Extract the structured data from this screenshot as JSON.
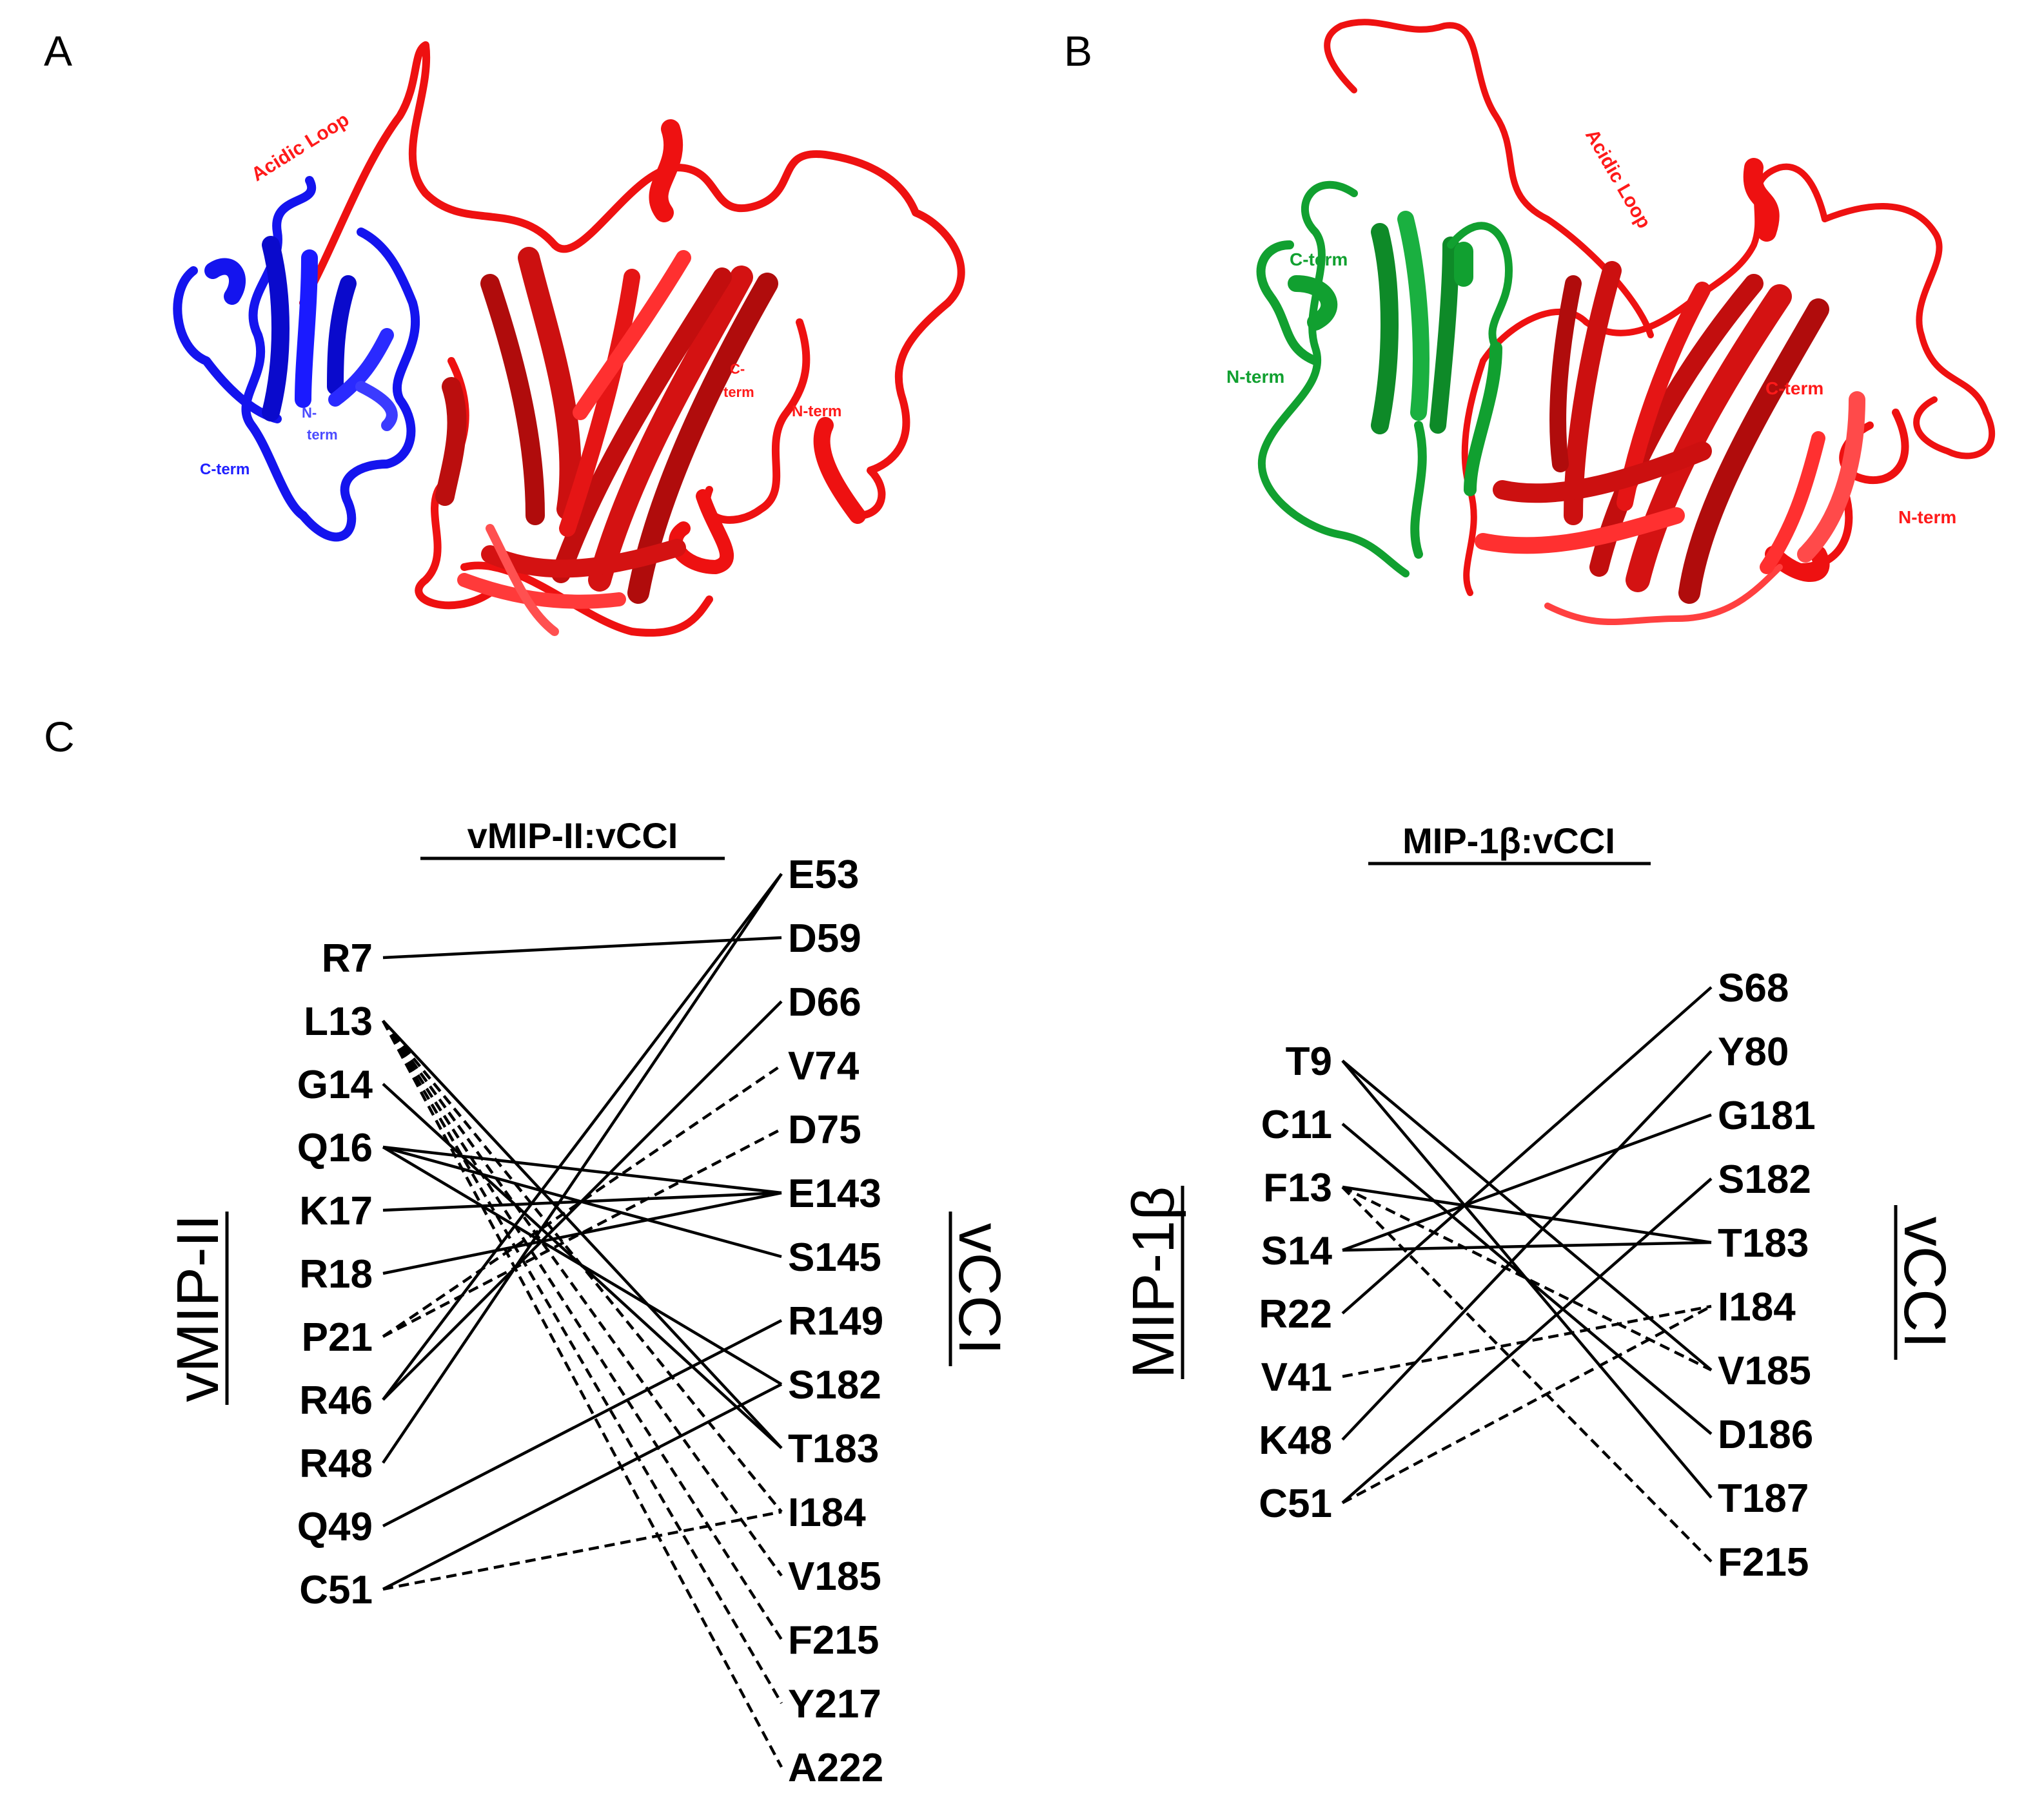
{
  "panels": {
    "a": {
      "letter": "A",
      "labels": {
        "acidic_loop": "Acidic Loop",
        "chemokine_c_term": "C-term",
        "chemokine_n_term_1": "N-",
        "chemokine_n_term_2": "term",
        "vcci_c_term_1": "C-",
        "vcci_c_term_2": "term",
        "vcci_n_term": "N-term"
      },
      "colors": {
        "chemokine": "#1a1aff",
        "vcci": "#ff1a1a"
      }
    },
    "b": {
      "letter": "B",
      "labels": {
        "acidic_loop": "Acidic Loop",
        "chemokine_c_term": "C-term",
        "chemokine_n_term": "N-term",
        "vcci_c_term": "C-term",
        "vcci_n_term": "N-term"
      },
      "colors": {
        "chemokine": "#1aa83a",
        "vcci": "#ff1a1a"
      }
    },
    "c": {
      "letter": "C",
      "left": {
        "title": "vMIP-II:vCCI",
        "left_axis": "vMIP-II",
        "left_residues": [
          "R7",
          "L13",
          "G14",
          "Q16",
          "K17",
          "R18",
          "P21",
          "R46",
          "R48",
          "Q49",
          "C51"
        ],
        "right_residues": [
          "E53",
          "D59",
          "D66",
          "V74",
          "D75",
          "E143",
          "S145",
          "R149",
          "S182",
          "T183",
          "I184",
          "V185",
          "F215",
          "Y217",
          "A222"
        ],
        "contacts": [
          {
            "from": "R7",
            "to": "D59",
            "style": "solid"
          },
          {
            "from": "L13",
            "to": "T183",
            "style": "solid"
          },
          {
            "from": "L13",
            "to": "I184",
            "style": "dashed"
          },
          {
            "from": "L13",
            "to": "V185",
            "style": "dashed"
          },
          {
            "from": "L13",
            "to": "F215",
            "style": "dashed"
          },
          {
            "from": "L13",
            "to": "Y217",
            "style": "dashed"
          },
          {
            "from": "L13",
            "to": "A222",
            "style": "dashed"
          },
          {
            "from": "G14",
            "to": "T183",
            "style": "solid"
          },
          {
            "from": "Q16",
            "to": "E143",
            "style": "solid"
          },
          {
            "from": "Q16",
            "to": "S145",
            "style": "solid"
          },
          {
            "from": "Q16",
            "to": "S182",
            "style": "solid"
          },
          {
            "from": "K17",
            "to": "E143",
            "style": "solid"
          },
          {
            "from": "R18",
            "to": "E143",
            "style": "solid"
          },
          {
            "from": "P21",
            "to": "V74",
            "style": "dashed"
          },
          {
            "from": "P21",
            "to": "D75",
            "style": "dashed"
          },
          {
            "from": "R46",
            "to": "E53",
            "style": "solid"
          },
          {
            "from": "R46",
            "to": "D66",
            "style": "solid"
          },
          {
            "from": "R48",
            "to": "E53",
            "style": "solid"
          },
          {
            "from": "Q49",
            "to": "R149",
            "style": "solid"
          },
          {
            "from": "C51",
            "to": "S182",
            "style": "solid"
          },
          {
            "from": "C51",
            "to": "I184",
            "style": "dashed"
          }
        ],
        "right_axis": "vCCI"
      },
      "right": {
        "title": "MIP-1β:vCCI",
        "left_axis": "MIP-1β",
        "left_residues": [
          "T9",
          "C11",
          "F13",
          "S14",
          "R22",
          "V41",
          "K48",
          "C51"
        ],
        "right_residues": [
          "S68",
          "Y80",
          "G181",
          "S182",
          "T183",
          "I184",
          "V185",
          "D186",
          "T187",
          "F215"
        ],
        "contacts": [
          {
            "from": "T9",
            "to": "V185",
            "style": "solid"
          },
          {
            "from": "T9",
            "to": "T187",
            "style": "solid"
          },
          {
            "from": "C11",
            "to": "D186",
            "style": "solid"
          },
          {
            "from": "F13",
            "to": "T183",
            "style": "solid"
          },
          {
            "from": "F13",
            "to": "V185",
            "style": "dashed"
          },
          {
            "from": "F13",
            "to": "F215",
            "style": "dashed"
          },
          {
            "from": "S14",
            "to": "G181",
            "style": "solid"
          },
          {
            "from": "S14",
            "to": "T183",
            "style": "solid"
          },
          {
            "from": "R22",
            "to": "S68",
            "style": "solid"
          },
          {
            "from": "V41",
            "to": "I184",
            "style": "dashed"
          },
          {
            "from": "K48",
            "to": "Y80",
            "style": "solid"
          },
          {
            "from": "C51",
            "to": "S182",
            "style": "solid"
          },
          {
            "from": "C51",
            "to": "I184",
            "style": "dashed"
          }
        ],
        "right_axis": "vCCI"
      }
    }
  }
}
